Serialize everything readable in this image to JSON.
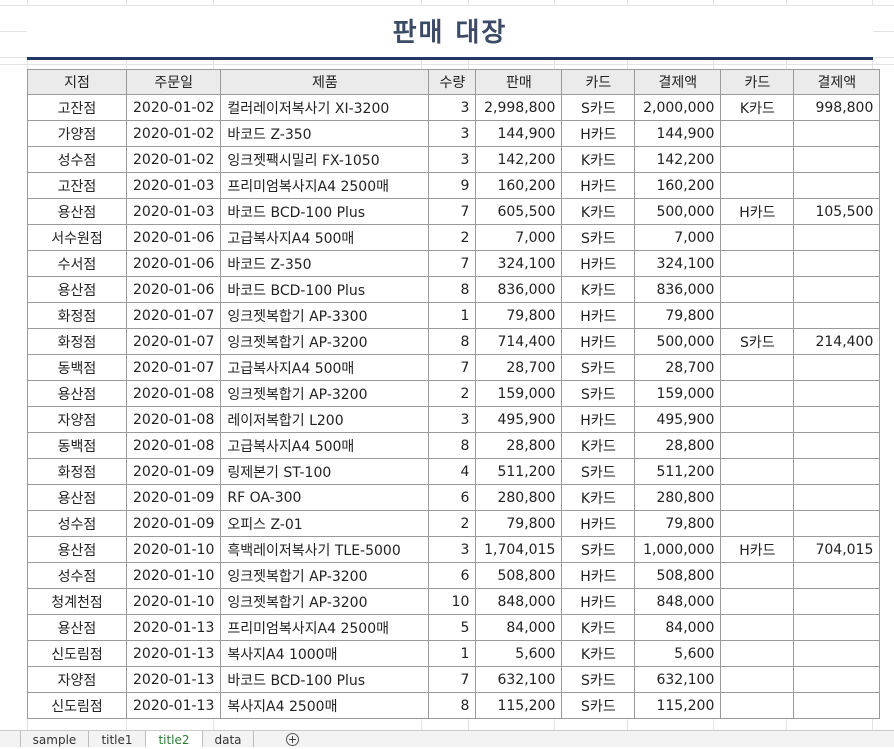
{
  "title": "판매 대장",
  "columns": [
    "지점",
    "주문일",
    "제품",
    "수량",
    "판매",
    "카드",
    "결제액",
    "카드",
    "결제액"
  ],
  "rows": [
    [
      "고잔점",
      "2020-01-02",
      "컬러레이저복사기 XI-3200",
      "3",
      "2,998,800",
      "S카드",
      "2,000,000",
      "K카드",
      "998,800"
    ],
    [
      "가양점",
      "2020-01-02",
      "바코드 Z-350",
      "3",
      "144,900",
      "H카드",
      "144,900",
      "",
      ""
    ],
    [
      "성수점",
      "2020-01-02",
      "잉크젯팩시밀리 FX-1050",
      "3",
      "142,200",
      "K카드",
      "142,200",
      "",
      ""
    ],
    [
      "고잔점",
      "2020-01-03",
      "프리미엄복사지A4 2500매",
      "9",
      "160,200",
      "H카드",
      "160,200",
      "",
      ""
    ],
    [
      "용산점",
      "2020-01-03",
      "바코드 BCD-100 Plus",
      "7",
      "605,500",
      "K카드",
      "500,000",
      "H카드",
      "105,500"
    ],
    [
      "서수원점",
      "2020-01-06",
      "고급복사지A4 500매",
      "2",
      "7,000",
      "S카드",
      "7,000",
      "",
      ""
    ],
    [
      "수서점",
      "2020-01-06",
      "바코드 Z-350",
      "7",
      "324,100",
      "H카드",
      "324,100",
      "",
      ""
    ],
    [
      "용산점",
      "2020-01-06",
      "바코드 BCD-100 Plus",
      "8",
      "836,000",
      "K카드",
      "836,000",
      "",
      ""
    ],
    [
      "화정점",
      "2020-01-07",
      "잉크젯복합기 AP-3300",
      "1",
      "79,800",
      "H카드",
      "79,800",
      "",
      ""
    ],
    [
      "화정점",
      "2020-01-07",
      "잉크젯복합기 AP-3200",
      "8",
      "714,400",
      "H카드",
      "500,000",
      "S카드",
      "214,400"
    ],
    [
      "동백점",
      "2020-01-07",
      "고급복사지A4 500매",
      "7",
      "28,700",
      "S카드",
      "28,700",
      "",
      ""
    ],
    [
      "용산점",
      "2020-01-08",
      "잉크젯복합기 AP-3200",
      "2",
      "159,000",
      "S카드",
      "159,000",
      "",
      ""
    ],
    [
      "자양점",
      "2020-01-08",
      "레이저복합기 L200",
      "3",
      "495,900",
      "H카드",
      "495,900",
      "",
      ""
    ],
    [
      "동백점",
      "2020-01-08",
      "고급복사지A4 500매",
      "8",
      "28,800",
      "K카드",
      "28,800",
      "",
      ""
    ],
    [
      "화정점",
      "2020-01-09",
      "링제본기 ST-100",
      "4",
      "511,200",
      "S카드",
      "511,200",
      "",
      ""
    ],
    [
      "용산점",
      "2020-01-09",
      "RF OA-300",
      "6",
      "280,800",
      "K카드",
      "280,800",
      "",
      ""
    ],
    [
      "성수점",
      "2020-01-09",
      "오피스 Z-01",
      "2",
      "79,800",
      "H카드",
      "79,800",
      "",
      ""
    ],
    [
      "용산점",
      "2020-01-10",
      "흑백레이저복사기 TLE-5000",
      "3",
      "1,704,015",
      "S카드",
      "1,000,000",
      "H카드",
      "704,015"
    ],
    [
      "성수점",
      "2020-01-10",
      "잉크젯복합기 AP-3200",
      "6",
      "508,800",
      "H카드",
      "508,800",
      "",
      ""
    ],
    [
      "청계천점",
      "2020-01-10",
      "잉크젯복합기 AP-3200",
      "10",
      "848,000",
      "H카드",
      "848,000",
      "",
      ""
    ],
    [
      "용산점",
      "2020-01-13",
      "프리미엄복사지A4 2500매",
      "5",
      "84,000",
      "K카드",
      "84,000",
      "",
      ""
    ],
    [
      "신도림점",
      "2020-01-13",
      "복사지A4 1000매",
      "1",
      "5,600",
      "K카드",
      "5,600",
      "",
      ""
    ],
    [
      "자양점",
      "2020-01-13",
      "바코드 BCD-100 Plus",
      "7",
      "632,100",
      "S카드",
      "632,100",
      "",
      ""
    ],
    [
      "신도림점",
      "2020-01-13",
      "복사지A4 2500매",
      "8",
      "115,200",
      "S카드",
      "115,200",
      "",
      ""
    ]
  ],
  "sheet_tabs": [
    "sample",
    "title1",
    "title2",
    "data"
  ],
  "active_tab": "title2",
  "add_sheet_icon": "plus-circle-icon",
  "colors": {
    "title": "#3b4a66",
    "title_rule": "#1f3864",
    "header_bg": "#ebebeb",
    "active_tab_text": "#2e7d32"
  }
}
